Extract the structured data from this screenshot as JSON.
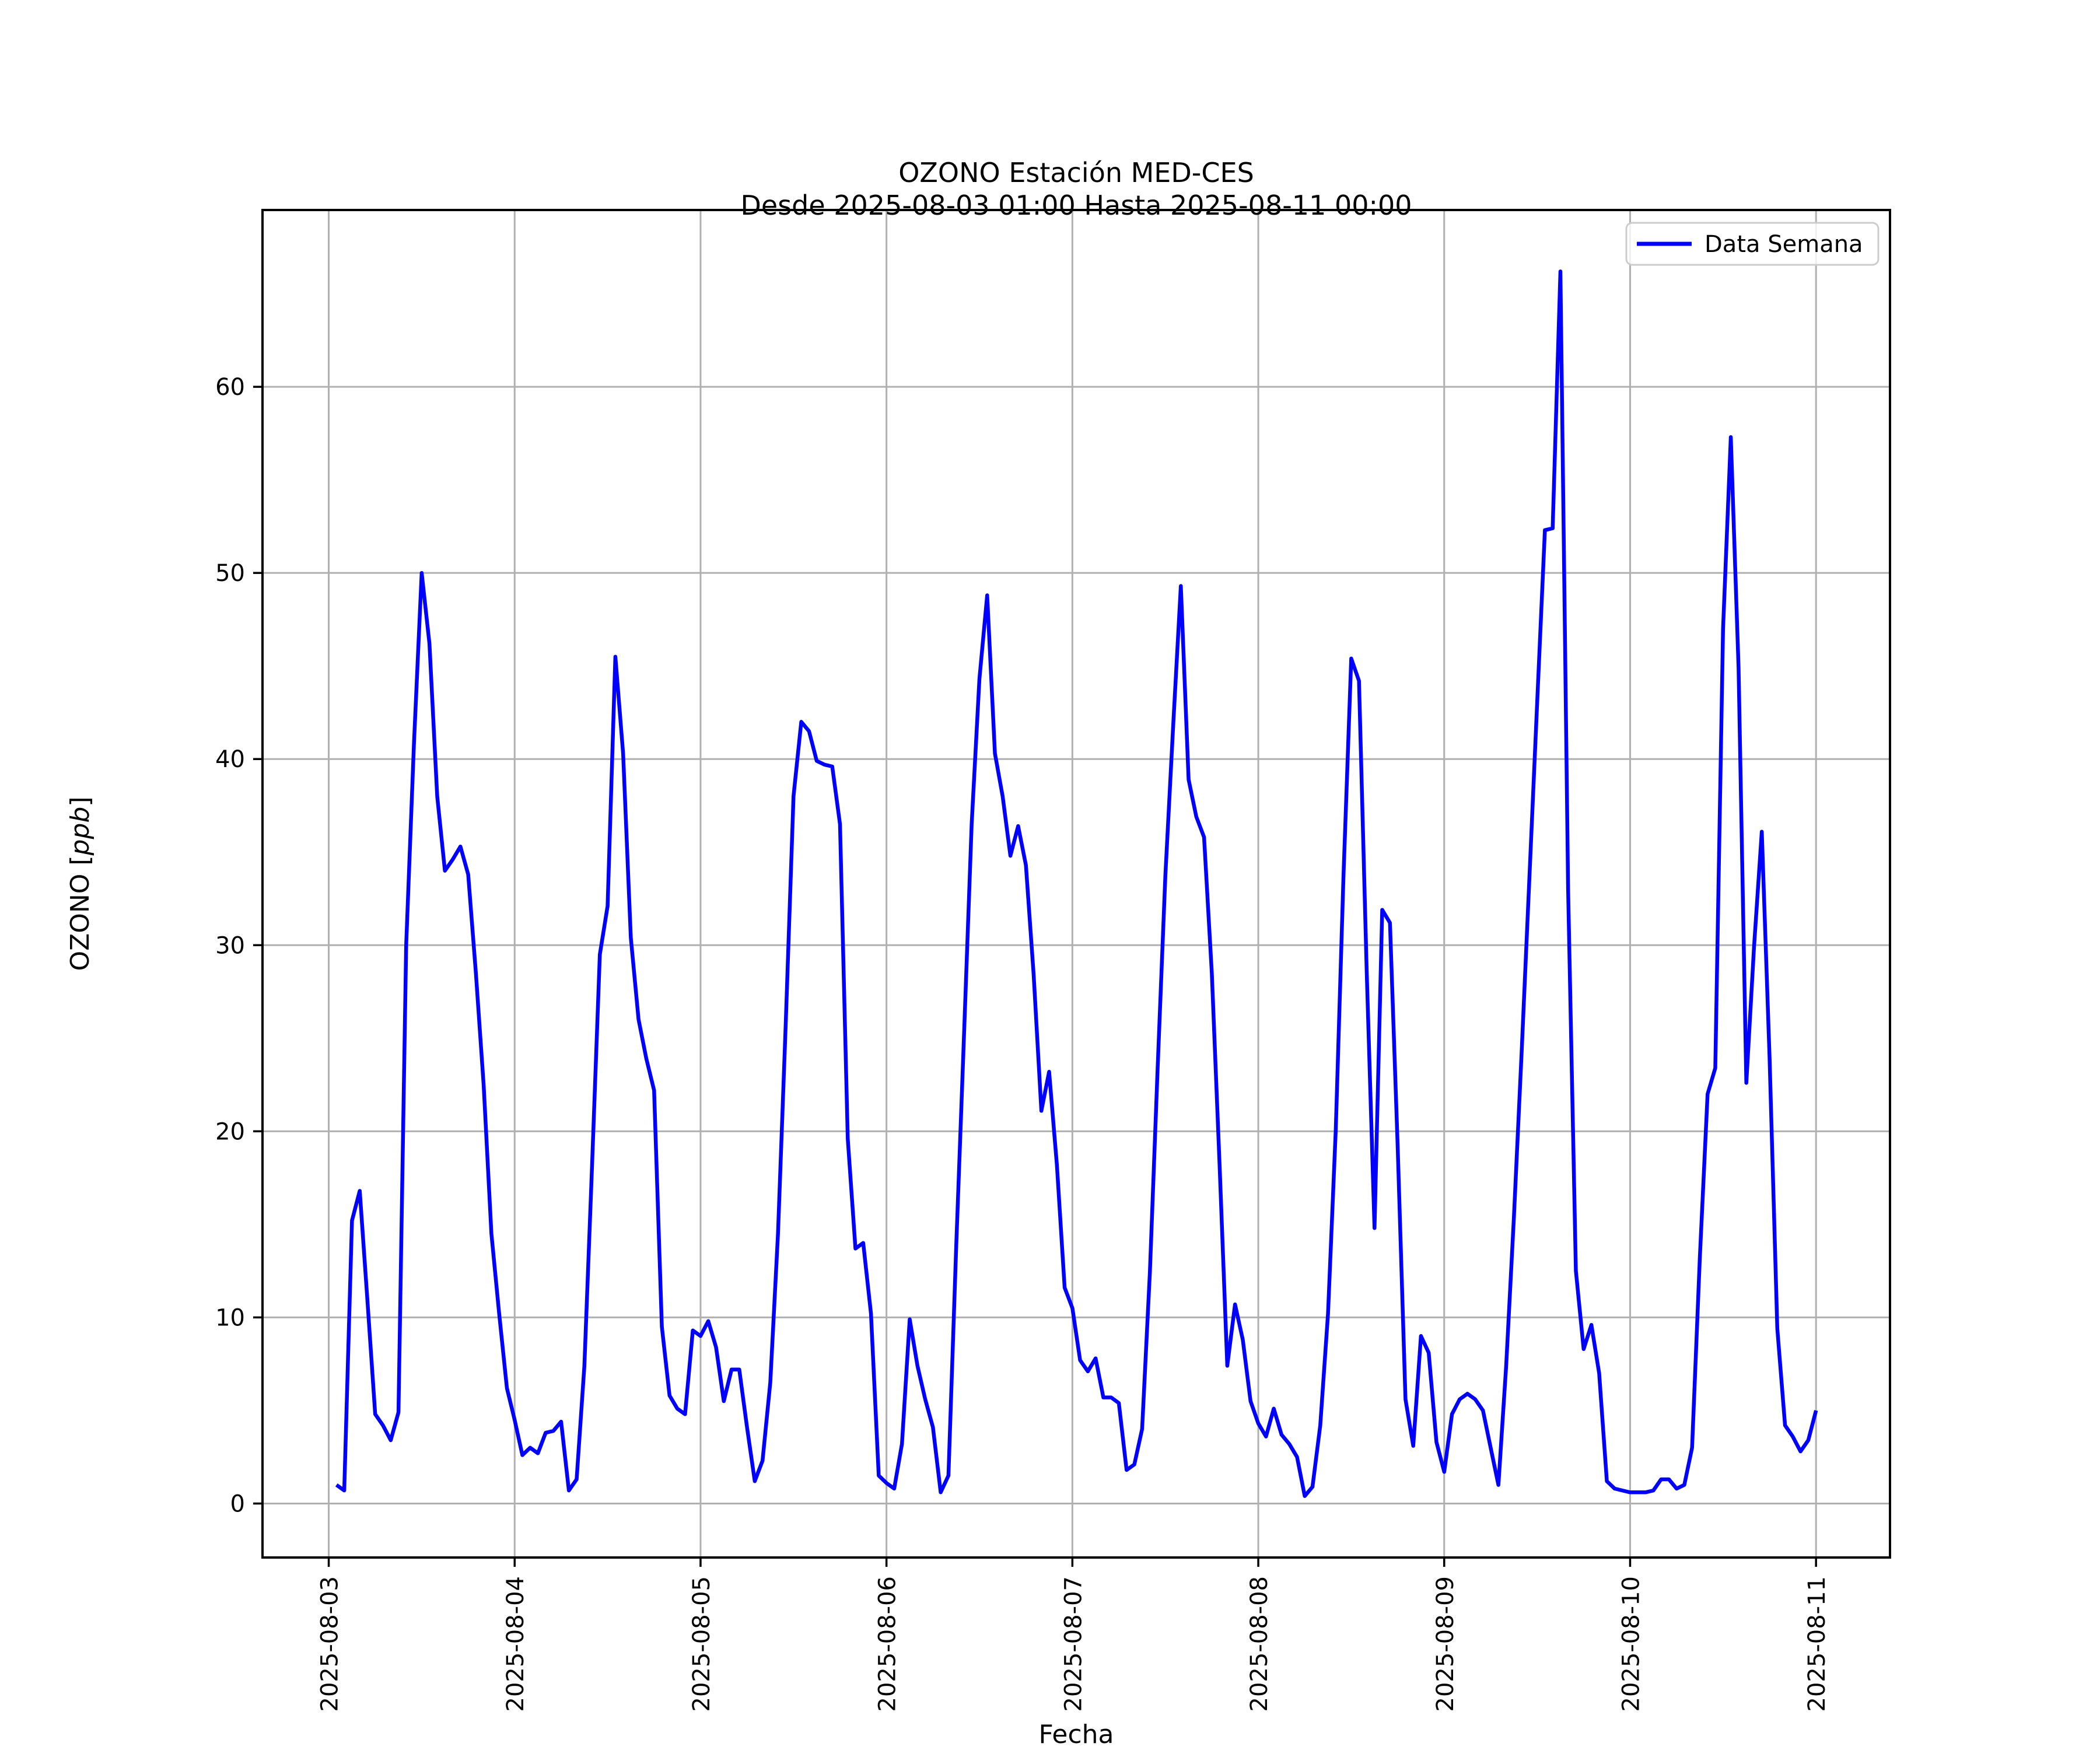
{
  "figure": {
    "background": "#ffffff"
  },
  "chart_data": {
    "type": "line",
    "title": "OZONO Estación MED-CES",
    "subtitle": "Desde 2025-08-03 01:00 Hasta 2025-08-11 00:00",
    "xlabel": "Fecha",
    "ylabel_parts": {
      "prefix": "OZONO [",
      "italic": "ppb",
      "suffix": "]"
    },
    "legend": {
      "label": "Data Semana",
      "position": "upper right"
    },
    "line_color": "#0000ff",
    "grid": true,
    "grid_color": "#b0b0b0",
    "x_start": "2025-08-03 01:00",
    "x_interval_hours": 1,
    "x_tick_labels": [
      "2025-08-03",
      "2025-08-04",
      "2025-08-05",
      "2025-08-06",
      "2025-08-07",
      "2025-08-08",
      "2025-08-09",
      "2025-08-10",
      "2025-08-11"
    ],
    "x_tick_hours": [
      0,
      24,
      48,
      72,
      96,
      120,
      144,
      168,
      192
    ],
    "y_ticks": [
      0,
      10,
      20,
      30,
      40,
      50,
      60
    ],
    "xlim_hours": [
      -8.55,
      201.55
    ],
    "ylim": [
      -2.9,
      69.5
    ],
    "values": [
      1.0,
      0.7,
      15.2,
      16.8,
      10.9,
      4.8,
      4.2,
      3.4,
      4.9,
      30.0,
      40.8,
      50.0,
      46.2,
      38.0,
      34.0,
      34.6,
      35.3,
      33.8,
      28.5,
      22.5,
      14.5,
      10.2,
      6.2,
      4.5,
      2.6,
      3.0,
      2.7,
      3.8,
      3.9,
      4.4,
      0.7,
      1.3,
      7.4,
      18.2,
      29.5,
      32.1,
      45.5,
      40.3,
      30.4,
      26.0,
      23.9,
      22.2,
      9.5,
      5.8,
      5.1,
      4.8,
      9.3,
      9.0,
      9.8,
      8.4,
      5.5,
      7.2,
      7.2,
      4.1,
      1.2,
      2.3,
      6.5,
      14.5,
      25.8,
      38.0,
      42.0,
      41.5,
      39.9,
      39.7,
      39.6,
      36.5,
      19.6,
      13.7,
      14.0,
      10.2,
      1.5,
      1.1,
      0.8,
      3.2,
      9.9,
      7.4,
      5.6,
      4.1,
      0.6,
      1.5,
      13.8,
      25.0,
      36.5,
      44.3,
      48.8,
      40.3,
      38.0,
      34.8,
      36.4,
      34.3,
      28.4,
      21.1,
      23.2,
      18.2,
      11.6,
      10.5,
      7.7,
      7.1,
      7.8,
      5.7,
      5.7,
      5.4,
      1.8,
      2.1,
      4.0,
      12.4,
      23.3,
      33.7,
      41.7,
      49.3,
      38.9,
      36.9,
      35.8,
      28.5,
      18.2,
      7.4,
      10.7,
      8.8,
      5.5,
      4.3,
      3.6,
      5.1,
      3.7,
      3.2,
      2.5,
      0.4,
      0.9,
      4.2,
      10.2,
      20.1,
      33.7,
      45.4,
      44.2,
      28.5,
      14.8,
      31.9,
      31.2,
      19.1,
      5.6,
      3.1,
      9.0,
      8.1,
      3.3,
      1.7,
      4.8,
      5.6,
      5.9,
      5.6,
      5.0,
      3.0,
      1.0,
      7.4,
      15.4,
      24.3,
      33.6,
      43.0,
      52.3,
      52.4,
      66.2,
      33.0,
      12.5,
      8.3,
      9.6,
      7.0,
      1.2,
      0.8,
      0.7,
      0.6,
      0.6,
      0.6,
      0.7,
      1.3,
      1.3,
      0.8,
      1.0,
      3.0,
      13.2,
      22.0,
      23.4,
      47.0,
      57.3,
      44.9,
      22.6,
      29.9,
      36.1,
      24.0,
      9.4,
      4.2,
      3.6,
      2.8,
      3.4,
      5.0
    ]
  }
}
